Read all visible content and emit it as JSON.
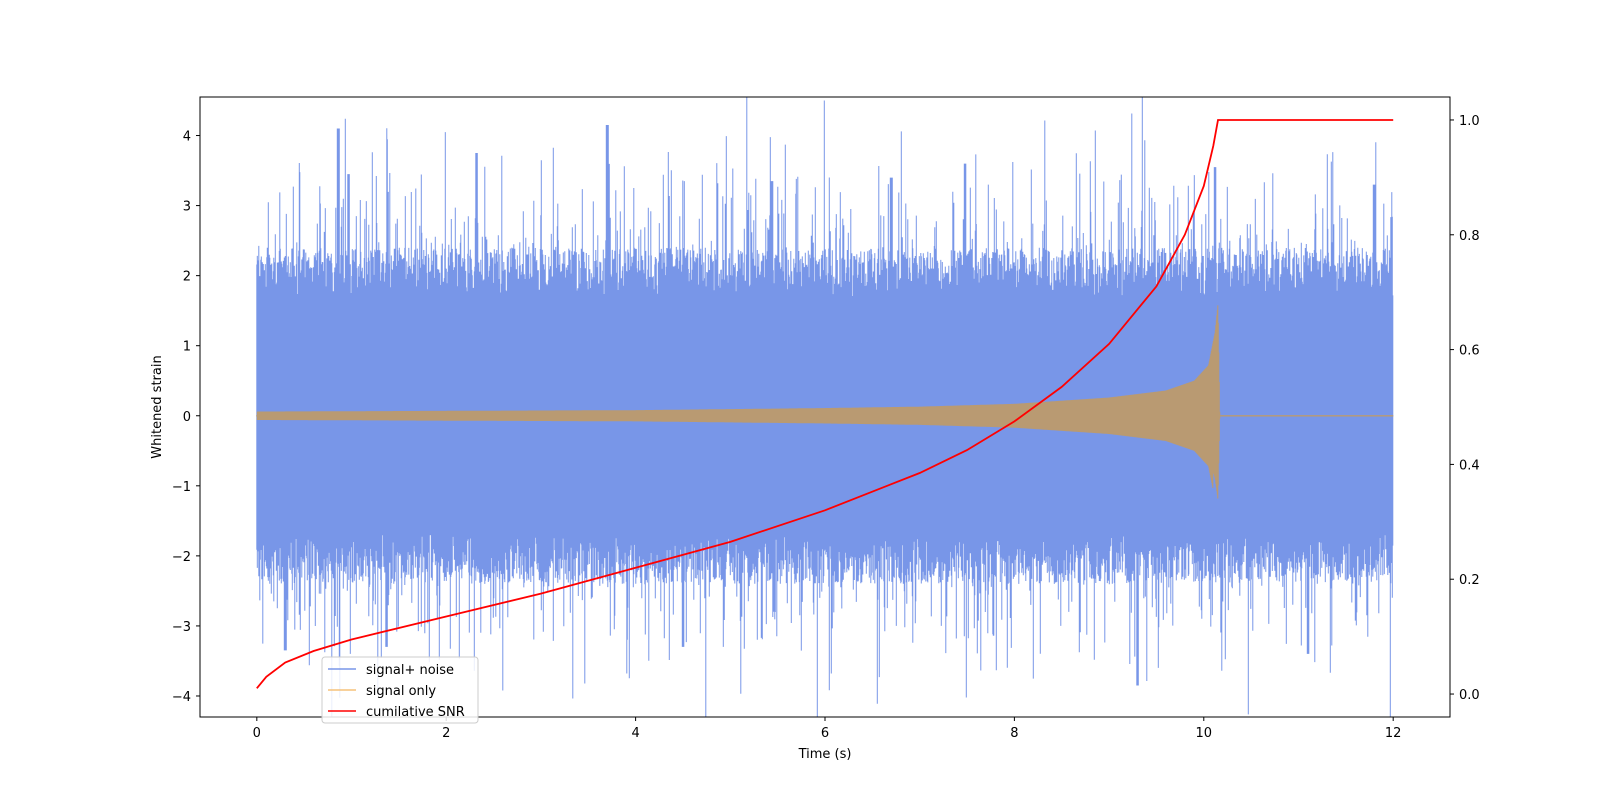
{
  "chart_data": {
    "type": "line",
    "title": "",
    "xlabel": "Time (s)",
    "ylabel": "Whitened strain",
    "y2label": "",
    "xlim": [
      -0.6,
      12.6
    ],
    "ylim": [
      -4.3,
      4.55
    ],
    "y2lim": [
      -0.04,
      1.04
    ],
    "xticks": [
      0,
      2,
      4,
      6,
      8,
      10,
      12
    ],
    "yticks": [
      -4,
      -3,
      -2,
      -1,
      0,
      1,
      2,
      3,
      4
    ],
    "y2ticks": [
      "0.0",
      "0.2",
      "0.4",
      "0.6",
      "0.8",
      "1.0"
    ],
    "grid": false,
    "legend_position": "lower-left",
    "series": [
      {
        "name": "signal+ noise",
        "axis": "left",
        "color": "#7896e8",
        "x_range": [
          0,
          12
        ],
        "typical_band": [
          -2.0,
          2.0
        ],
        "peaks": [
          {
            "x": 0.86,
            "y": 4.1
          },
          {
            "x": 3.7,
            "y": 4.15
          },
          {
            "x": 2.32,
            "y": 3.75
          },
          {
            "x": 0.97,
            "y": 3.45
          },
          {
            "x": 5.44,
            "y": 3.35
          },
          {
            "x": 7.48,
            "y": 3.6
          },
          {
            "x": 6.7,
            "y": 3.4
          },
          {
            "x": 10.12,
            "y": 3.55
          },
          {
            "x": 11.8,
            "y": 3.3
          },
          {
            "x": 9.3,
            "y": -3.85
          },
          {
            "x": 11.1,
            "y": -3.4
          },
          {
            "x": 0.3,
            "y": -3.35
          },
          {
            "x": 1.37,
            "y": -3.3
          },
          {
            "x": 4.5,
            "y": -3.3
          }
        ]
      },
      {
        "name": "signal only",
        "axis": "left",
        "color": "#f5c27a",
        "envelope": [
          {
            "x": 0,
            "a": 0.06
          },
          {
            "x": 2,
            "a": 0.07
          },
          {
            "x": 4,
            "a": 0.08
          },
          {
            "x": 6,
            "a": 0.11
          },
          {
            "x": 7,
            "a": 0.13
          },
          {
            "x": 8,
            "a": 0.17
          },
          {
            "x": 9,
            "a": 0.26
          },
          {
            "x": 9.6,
            "a": 0.36
          },
          {
            "x": 9.9,
            "a": 0.5
          },
          {
            "x": 10.05,
            "a": 0.72
          },
          {
            "x": 10.12,
            "a": 1.2
          },
          {
            "x": 10.15,
            "a": 1.6
          },
          {
            "x": 10.17,
            "a": 0.0
          },
          {
            "x": 12,
            "a": 0.0
          }
        ]
      },
      {
        "name": "cumilative SNR",
        "axis": "right",
        "color": "#ff0000",
        "points": [
          [
            0,
            0.01
          ],
          [
            0.1,
            0.03
          ],
          [
            0.3,
            0.055
          ],
          [
            0.6,
            0.075
          ],
          [
            1,
            0.095
          ],
          [
            2,
            0.135
          ],
          [
            3,
            0.175
          ],
          [
            4,
            0.22
          ],
          [
            5,
            0.265
          ],
          [
            6,
            0.32
          ],
          [
            7,
            0.385
          ],
          [
            7.5,
            0.425
          ],
          [
            8,
            0.475
          ],
          [
            8.5,
            0.535
          ],
          [
            9,
            0.61
          ],
          [
            9.5,
            0.71
          ],
          [
            9.8,
            0.8
          ],
          [
            10,
            0.885
          ],
          [
            10.1,
            0.955
          ],
          [
            10.15,
            1.0
          ],
          [
            12,
            1.0
          ]
        ]
      }
    ]
  }
}
